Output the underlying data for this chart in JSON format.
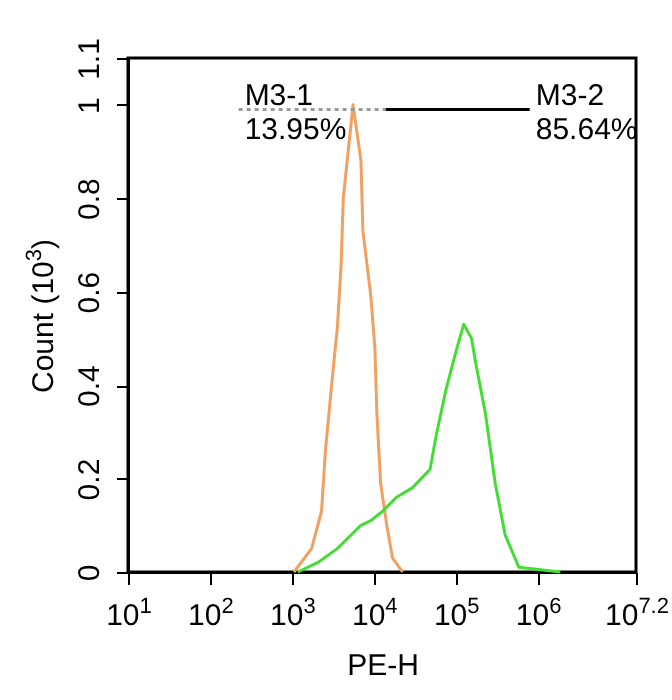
{
  "chart_data": {
    "type": "line",
    "xlabel": "PE-H",
    "ylabel": "Count (10$^{3}$)",
    "log": "x",
    "xlim": [
      10,
      15848932
    ],
    "xticks": [
      {
        "value": 10,
        "label": "10$^{1}$"
      },
      {
        "value": 100,
        "label": "10$^{2}$"
      },
      {
        "value": 1000,
        "label": "10$^{3}$"
      },
      {
        "value": 10000,
        "label": "10$^{4}$"
      },
      {
        "value": 100000,
        "label": "10$^{5}$"
      },
      {
        "value": 1000000,
        "label": "10$^{6}$"
      },
      {
        "value": 15848932,
        "label": "10$^{7.2}$"
      }
    ],
    "ylim": [
      0,
      1.1
    ],
    "yticks": [
      0,
      0.2,
      0.4,
      0.6,
      0.8,
      1,
      1.1
    ],
    "grid": false,
    "series": [
      {
        "color": "#f0a060",
        "x": [
          1060,
          1740,
          2300,
          2570,
          3020,
          3390,
          3580,
          4000,
          4240,
          4730,
          5580,
          6970,
          7360,
          9200,
          10300,
          10900,
          12100,
          14400,
          16900,
          22400
        ],
        "values": [
          0,
          0.05,
          0.13,
          0.26,
          0.39,
          0.48,
          0.52,
          0.66,
          0.8,
          0.88,
          1.0,
          0.88,
          0.73,
          0.59,
          0.48,
          0.34,
          0.19,
          0.1,
          0.03,
          0
        ]
      },
      {
        "color": "#44dd33",
        "x": [
          1180,
          2060,
          3580,
          6970,
          9200,
          12800,
          18900,
          29500,
          48600,
          57400,
          75900,
          100000,
          125000,
          156000,
          174000,
          230000,
          303000,
          400000,
          590000,
          1890000
        ],
        "values": [
          0,
          0.02,
          0.05,
          0.1,
          0.11,
          0.13,
          0.16,
          0.18,
          0.22,
          0.29,
          0.39,
          0.47,
          0.53,
          0.5,
          0.45,
          0.34,
          0.19,
          0.08,
          0.01,
          0
        ]
      },
      {
        "name": "M3-1",
        "color": "#999999",
        "line_style": "dotted",
        "x": [
          224,
          14000
        ],
        "values": [
          0.99,
          0.99
        ]
      },
      {
        "name": "M3-2",
        "color": "#000000",
        "line_style": "solid",
        "x": [
          800000,
          14000
        ],
        "values": [
          0.99,
          0.99
        ]
      }
    ],
    "annotations": [
      "13.95%",
      "85.64%"
    ]
  }
}
